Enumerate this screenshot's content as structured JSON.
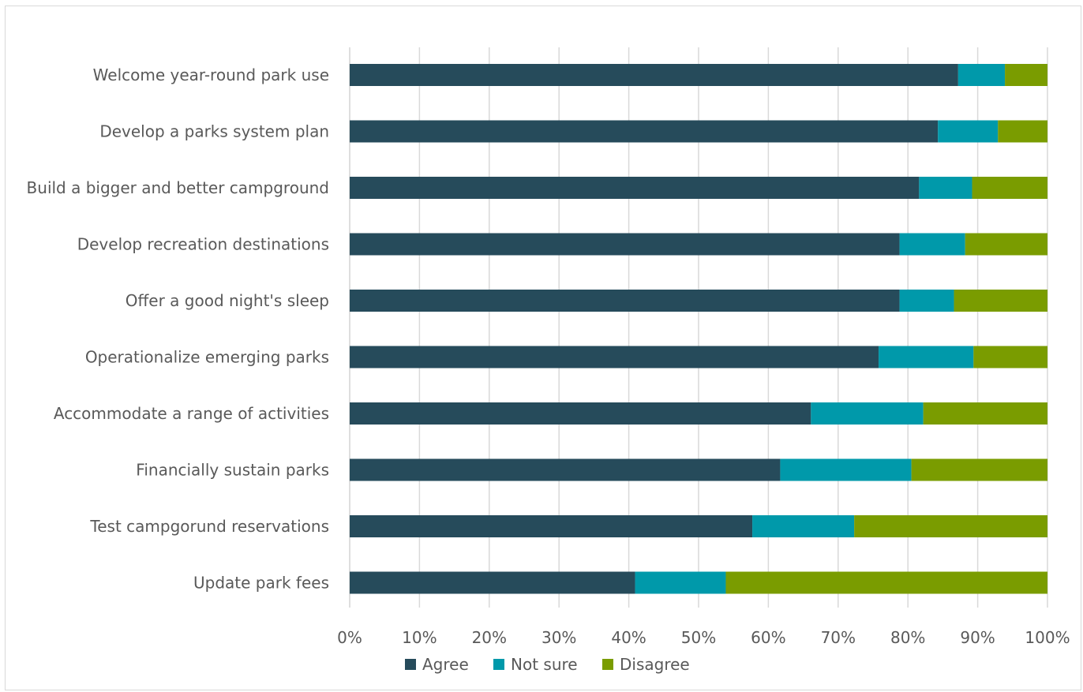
{
  "chart_data": {
    "type": "bar",
    "orientation": "horizontal",
    "stacked": "percent",
    "categories": [
      "Welcome year-round park use",
      "Develop a parks system plan",
      "Build a bigger and better campground",
      "Develop recreation destinations",
      "Offer a good night's sleep",
      "Operationalize emerging parks",
      "Accommodate a range of activities",
      "Financially sustain parks",
      "Test campgorund reservations",
      "Update park fees"
    ],
    "series": [
      {
        "name": "Agree",
        "color": "#264b5b",
        "values": [
          87.2,
          84.3,
          81.6,
          78.8,
          78.8,
          75.8,
          66.1,
          61.7,
          57.7,
          40.9
        ]
      },
      {
        "name": "Not sure",
        "color": "#0099aa",
        "values": [
          6.7,
          8.6,
          7.6,
          9.4,
          7.8,
          13.6,
          16.1,
          18.8,
          14.6,
          13.0
        ]
      },
      {
        "name": "Disagree",
        "color": "#7a9c00",
        "values": [
          6.1,
          7.1,
          10.8,
          11.8,
          13.4,
          10.6,
          17.8,
          19.5,
          27.7,
          46.1
        ]
      }
    ],
    "x_ticks": [
      "0%",
      "10%",
      "20%",
      "30%",
      "40%",
      "50%",
      "60%",
      "70%",
      "80%",
      "90%",
      "100%"
    ],
    "xlim": [
      0,
      100
    ],
    "grid": true,
    "legend_position": "bottom",
    "title": "",
    "xlabel": "",
    "ylabel": ""
  }
}
